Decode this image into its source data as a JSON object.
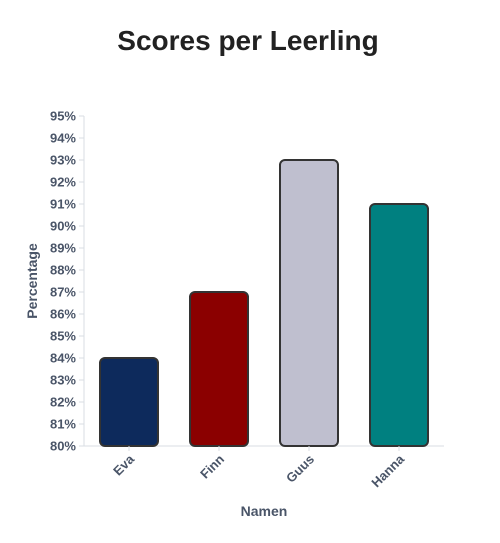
{
  "colors": {
    "title": "#222222",
    "axis_text": "#4a5568",
    "axis_line": "#d9dde3",
    "bar_stroke": "#333333"
  },
  "chart_data": {
    "type": "bar",
    "title": "Scores per Leerling",
    "xlabel": "Namen",
    "ylabel": "Percentage",
    "categories": [
      "Eva",
      "Finn",
      "Guus",
      "Hanna"
    ],
    "values": [
      84,
      87,
      93,
      91
    ],
    "bar_colors": [
      "#0d2a5c",
      "#8b0000",
      "#bfbfcf",
      "#008080"
    ],
    "ylim": [
      80,
      95
    ],
    "yticks": [
      "80%",
      "81%",
      "82%",
      "83%",
      "84%",
      "85%",
      "86%",
      "87%",
      "88%",
      "89%",
      "90%",
      "91%",
      "92%",
      "93%",
      "94%",
      "95%"
    ],
    "grid": false,
    "legend": "none"
  }
}
